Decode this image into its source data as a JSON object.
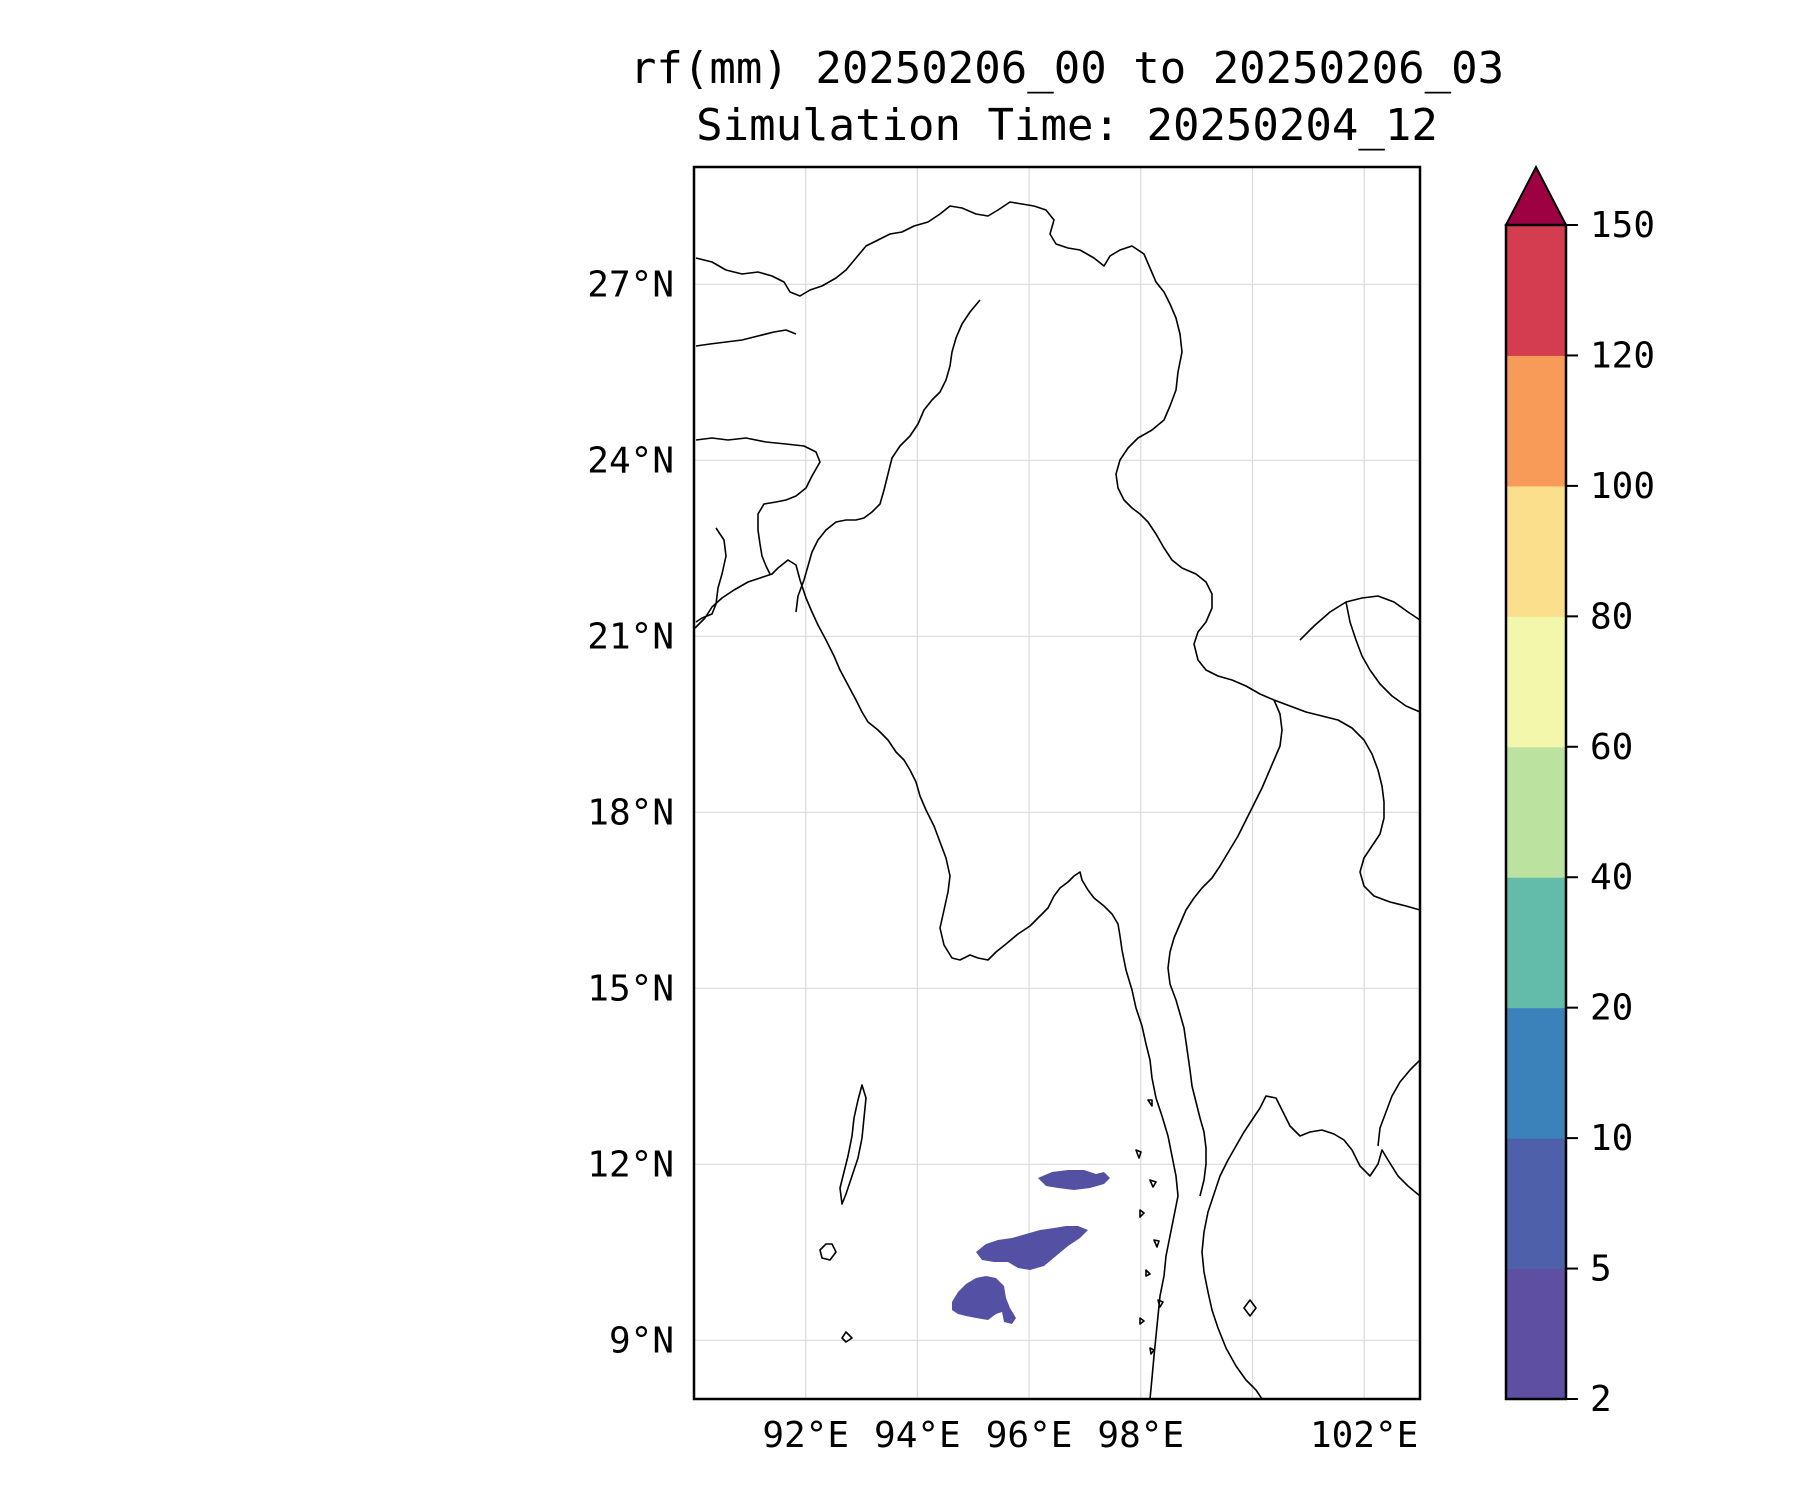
{
  "title": {
    "line1": "rf(mm) 20250206_00 to 20250206_03",
    "line2": "Simulation Time: 20250204_12"
  },
  "map": {
    "lon_range": [
      90.0,
      103.0
    ],
    "lat_range": [
      8.0,
      29.0
    ],
    "lon_ticks": [
      {
        "value": 92,
        "label": "92°E"
      },
      {
        "value": 94,
        "label": "94°E"
      },
      {
        "value": 96,
        "label": "96°E"
      },
      {
        "value": 98,
        "label": "98°E"
      },
      {
        "value": 102,
        "label": "102°E"
      }
    ],
    "lat_ticks": [
      {
        "value": 9,
        "label": "9°N"
      },
      {
        "value": 12,
        "label": "12°N"
      },
      {
        "value": 15,
        "label": "15°N"
      },
      {
        "value": 18,
        "label": "18°N"
      },
      {
        "value": 21,
        "label": "21°N"
      },
      {
        "value": 24,
        "label": "24°N"
      },
      {
        "value": 27,
        "label": "27°N"
      }
    ],
    "gridlines": true,
    "rain_color": "#5450a4"
  },
  "colorbar": {
    "extend": "max",
    "levels": [
      {
        "value": 2,
        "label": "2"
      },
      {
        "value": 5,
        "label": "5"
      },
      {
        "value": 10,
        "label": "10"
      },
      {
        "value": 20,
        "label": "20"
      },
      {
        "value": 40,
        "label": "40"
      },
      {
        "value": 60,
        "label": "60"
      },
      {
        "value": 80,
        "label": "80"
      },
      {
        "value": 100,
        "label": "100"
      },
      {
        "value": 120,
        "label": "120"
      },
      {
        "value": 150,
        "label": "150"
      }
    ],
    "colors": [
      "#5e4fa2",
      "#4f60ab",
      "#3b82bb",
      "#63bca9",
      "#bbe29f",
      "#f2f7ab",
      "#fcdf8c",
      "#f89b58",
      "#d43d4f"
    ],
    "over_color": "#9e0142"
  }
}
